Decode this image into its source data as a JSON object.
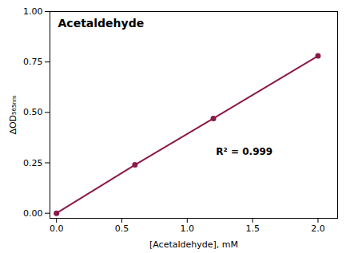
{
  "chart_data": {
    "type": "line",
    "title": "Acetaldehyde",
    "x": [
      0.0,
      0.6,
      1.2,
      2.0
    ],
    "series": [
      {
        "name": "Acetaldehyde",
        "color": "#8B1A4A",
        "values": [
          0.0,
          0.24,
          0.47,
          0.78
        ]
      }
    ],
    "marker": "circle",
    "xlabel": "[Acetaldehyde], mM",
    "ylabel": "ΔOD₅₆₅ₙₘ",
    "xlim": [
      -0.05,
      2.15
    ],
    "xticks": [
      {
        "value": 0.0,
        "label": "0.0"
      },
      0.5,
      {
        "value": 1.0,
        "label": "1.0"
      },
      1.5,
      {
        "value": 2.0,
        "label": "2.0"
      }
    ],
    "ylim": [
      -0.025,
      1.0
    ],
    "yticks": [
      {
        "value": 0.0,
        "label": "0.00"
      },
      {
        "value": 0.25,
        "label": "0.25"
      },
      {
        "value": 0.5,
        "label": "0.50"
      },
      {
        "value": 0.75,
        "label": "0.75"
      },
      {
        "value": 1.0,
        "label": "1.00"
      }
    ],
    "annotations": [
      {
        "text": "R² = 0.999",
        "x": 1.22,
        "y": 0.305
      }
    ],
    "grid": false
  }
}
